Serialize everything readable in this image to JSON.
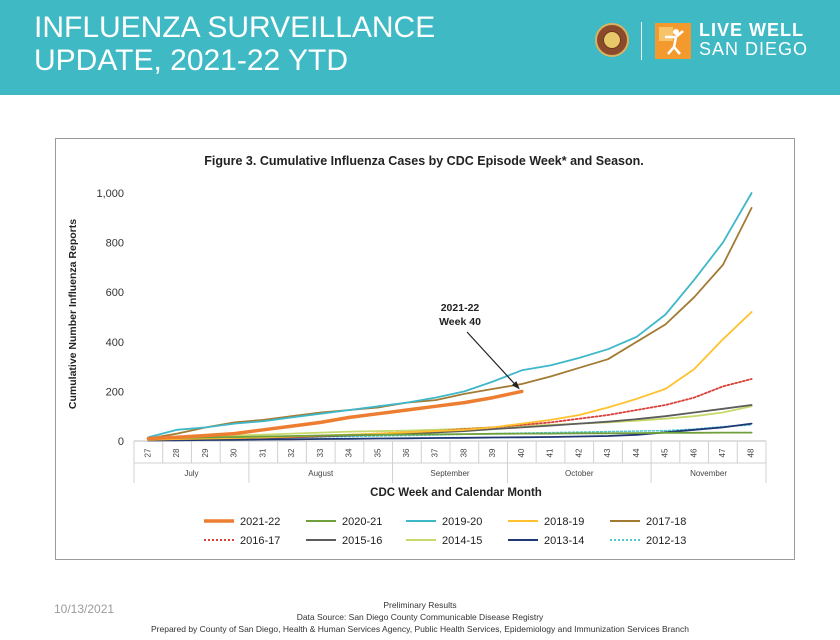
{
  "banner": {
    "title_line1": "INFLUENZA SURVEILLANCE",
    "title_line2": "UPDATE, 2021-22 YTD",
    "logo_line1": "LIVE WELL",
    "logo_line2": "SAN DIEGO",
    "background_color": "#3fbac5"
  },
  "chart_data": {
    "type": "line",
    "title": "Figure 3. Cumulative Influenza Cases by CDC Episode Week* and Season.",
    "xlabel": "CDC Week and Calendar Month",
    "ylabel": "Cumulative Number Influenza Reports",
    "ylim": [
      0,
      1000
    ],
    "yticks": [
      "0",
      "200",
      "400",
      "600",
      "800",
      "1,000"
    ],
    "categories": [
      "27",
      "28",
      "29",
      "30",
      "31",
      "32",
      "33",
      "34",
      "35",
      "36",
      "37",
      "38",
      "39",
      "40",
      "41",
      "42",
      "43",
      "44",
      "45",
      "46",
      "47",
      "48"
    ],
    "months": [
      {
        "label": "July",
        "from": 0,
        "to": 3
      },
      {
        "label": "August",
        "from": 4,
        "to": 8
      },
      {
        "label": "September",
        "from": 9,
        "to": 12
      },
      {
        "label": "October",
        "from": 13,
        "to": 17
      },
      {
        "label": "November",
        "from": 18,
        "to": 21
      }
    ],
    "grid": false,
    "legend_position": "bottom",
    "annotation": {
      "line1": "2021-22",
      "line2": "Week 40",
      "target_index": 13,
      "target_value": 200
    },
    "series": [
      {
        "name": "2021-22",
        "color": "#ed7d31",
        "width": 3.5,
        "dash": "",
        "values": [
          10,
          15,
          22,
          30,
          45,
          60,
          75,
          95,
          110,
          125,
          140,
          155,
          175,
          200,
          null,
          null,
          null,
          null,
          null,
          null,
          null,
          null
        ]
      },
      {
        "name": "2020-21",
        "color": "#70a03c",
        "width": 1.8,
        "dash": "",
        "values": [
          10,
          12,
          14,
          16,
          18,
          20,
          22,
          24,
          25,
          26,
          27,
          28,
          29,
          30,
          30,
          31,
          31,
          32,
          33,
          33,
          34,
          34
        ]
      },
      {
        "name": "2019-20",
        "color": "#3eb7c9",
        "width": 1.8,
        "dash": "",
        "values": [
          15,
          45,
          55,
          70,
          80,
          95,
          110,
          125,
          140,
          155,
          175,
          200,
          240,
          285,
          305,
          335,
          370,
          420,
          510,
          650,
          800,
          1000
        ]
      },
      {
        "name": "2018-19",
        "color": "#ffc12e",
        "width": 1.8,
        "dash": "",
        "values": [
          5,
          8,
          10,
          12,
          15,
          18,
          22,
          26,
          30,
          35,
          40,
          45,
          55,
          70,
          85,
          105,
          135,
          170,
          210,
          290,
          410,
          520
        ]
      },
      {
        "name": "2017-18",
        "color": "#a37a32",
        "width": 1.8,
        "dash": "",
        "values": [
          10,
          30,
          55,
          75,
          85,
          100,
          115,
          125,
          135,
          155,
          165,
          190,
          210,
          230,
          260,
          295,
          330,
          400,
          470,
          580,
          710,
          940
        ]
      },
      {
        "name": "2016-17",
        "color": "#d9403a",
        "width": 1.8,
        "dash": "2 2",
        "values": [
          5,
          8,
          10,
          12,
          14,
          16,
          20,
          25,
          30,
          35,
          40,
          48,
          55,
          65,
          75,
          90,
          105,
          125,
          145,
          175,
          220,
          250
        ]
      },
      {
        "name": "2015-16",
        "color": "#5c5c5c",
        "width": 1.8,
        "dash": "",
        "values": [
          5,
          7,
          9,
          11,
          13,
          15,
          18,
          22,
          26,
          30,
          35,
          40,
          48,
          55,
          62,
          70,
          78,
          88,
          100,
          115,
          130,
          145
        ]
      },
      {
        "name": "2014-15",
        "color": "#c6d96b",
        "width": 1.8,
        "dash": "",
        "values": [
          10,
          14,
          18,
          22,
          26,
          30,
          34,
          38,
          40,
          42,
          45,
          50,
          55,
          60,
          65,
          70,
          75,
          82,
          90,
          100,
          115,
          140
        ]
      },
      {
        "name": "2013-14",
        "color": "#1f3773",
        "width": 1.8,
        "dash": "",
        "values": [
          2,
          3,
          4,
          5,
          6,
          7,
          8,
          9,
          10,
          11,
          12,
          13,
          14,
          15,
          16,
          18,
          20,
          25,
          35,
          45,
          55,
          70
        ]
      },
      {
        "name": "2012-13",
        "color": "#4fc6d0",
        "width": 1.5,
        "dash": "2 2",
        "values": [
          5,
          6,
          8,
          10,
          12,
          14,
          16,
          18,
          20,
          22,
          24,
          27,
          30,
          32,
          34,
          36,
          38,
          40,
          42,
          48,
          58,
          65
        ]
      }
    ]
  },
  "footer": {
    "date": "10/13/2021",
    "line1": "Preliminary Results",
    "line2": "Data Source: San Diego County Communicable Disease Registry",
    "line3": "Prepared by County of San Diego, Health & Human Services Agency, Public Health Services, Epidemiology and Immunization Services Branch"
  }
}
